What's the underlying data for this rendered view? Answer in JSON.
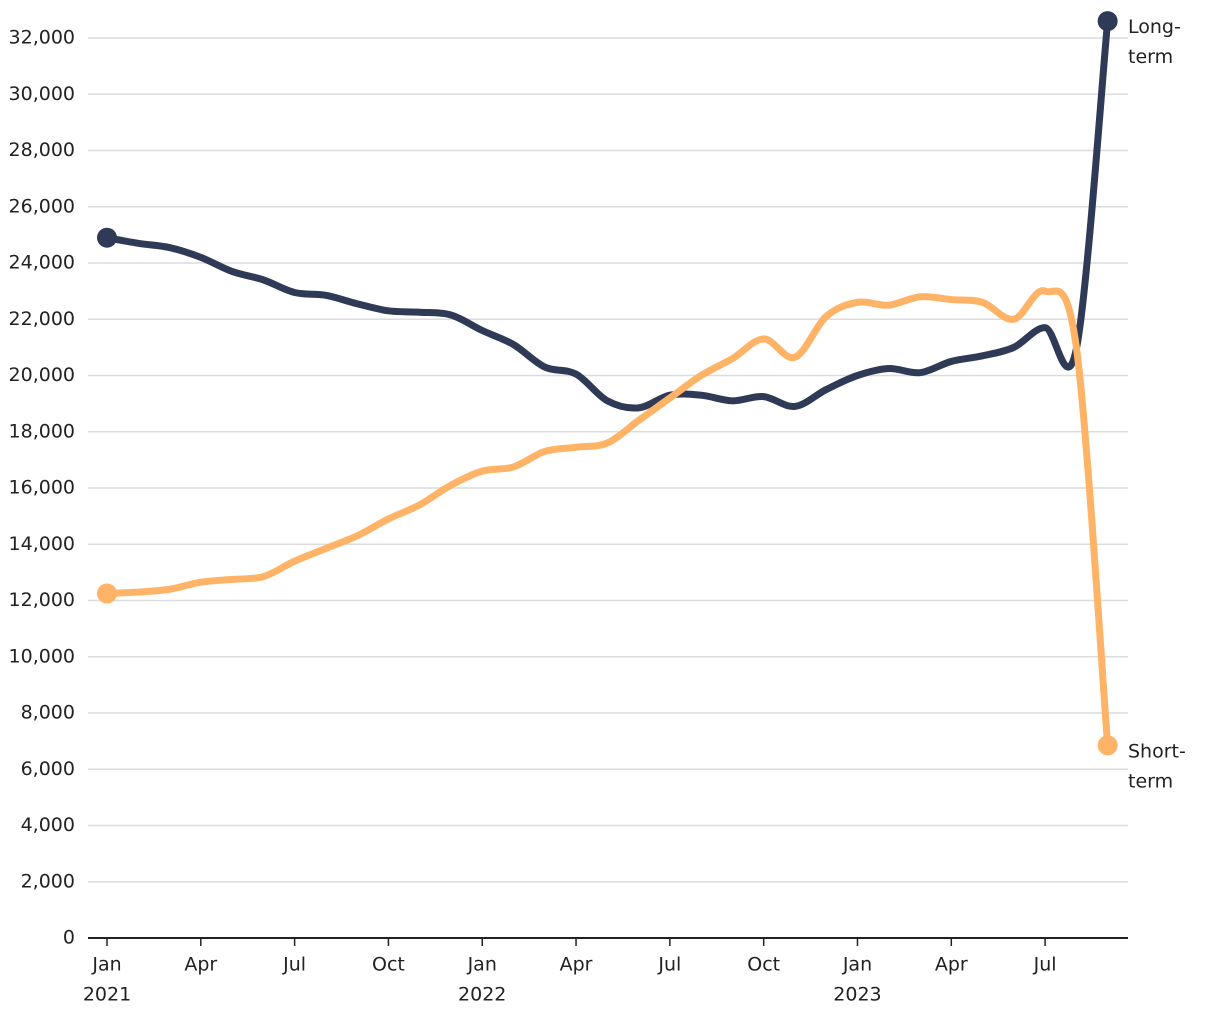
{
  "chart_data": {
    "type": "line",
    "x": [
      "2021-01",
      "2021-02",
      "2021-03",
      "2021-04",
      "2021-05",
      "2021-06",
      "2021-07",
      "2021-08",
      "2021-09",
      "2021-10",
      "2021-11",
      "2021-12",
      "2022-01",
      "2022-02",
      "2022-03",
      "2022-04",
      "2022-05",
      "2022-06",
      "2022-07",
      "2022-08",
      "2022-09",
      "2022-10",
      "2022-11",
      "2022-12",
      "2023-01",
      "2023-02",
      "2023-03",
      "2023-04",
      "2023-05",
      "2023-06",
      "2023-07",
      "2023-08",
      "2023-09"
    ],
    "series": [
      {
        "name": "Long-term",
        "color": "#2f3a56",
        "label_color": "#3a4466",
        "values": [
          24900,
          24700,
          24550,
          24200,
          23700,
          23400,
          22950,
          22850,
          22550,
          22300,
          22250,
          22150,
          21600,
          21100,
          20300,
          20050,
          19100,
          18850,
          19300,
          19300,
          19100,
          19250,
          18900,
          19500,
          20000,
          20250,
          20100,
          20500,
          20700,
          21000,
          21700,
          20950,
          32600
        ]
      },
      {
        "name": "Short-term",
        "color": "#ffb366",
        "label_color": "#b07a30",
        "values": [
          12250,
          12300,
          12400,
          12650,
          12750,
          12850,
          13400,
          13850,
          14300,
          14900,
          15400,
          16100,
          16600,
          16750,
          17300,
          17450,
          17600,
          18400,
          19200,
          20000,
          20600,
          21300,
          20650,
          22100,
          22600,
          22500,
          22800,
          22700,
          22600,
          22000,
          23000,
          21000,
          6850
        ]
      }
    ],
    "ylim": [
      0,
      32000
    ],
    "yticks": [
      {
        "value": 0,
        "label": "0"
      },
      {
        "value": 2000,
        "label": "2,000"
      },
      {
        "value": 4000,
        "label": "4,000"
      },
      {
        "value": 6000,
        "label": "6,000"
      },
      {
        "value": 8000,
        "label": "8,000"
      },
      {
        "value": 10000,
        "label": "10,000"
      },
      {
        "value": 12000,
        "label": "12,000"
      },
      {
        "value": 14000,
        "label": "14,000"
      },
      {
        "value": 16000,
        "label": "16,000"
      },
      {
        "value": 18000,
        "label": "18,000"
      },
      {
        "value": 20000,
        "label": "20,000"
      },
      {
        "value": 22000,
        "label": "22,000"
      },
      {
        "value": 24000,
        "label": "24,000"
      },
      {
        "value": 26000,
        "label": "26,000"
      },
      {
        "value": 28000,
        "label": "28,000"
      },
      {
        "value": 30000,
        "label": "30,000"
      },
      {
        "value": 32000,
        "label": "32,000"
      }
    ],
    "xticks": [
      {
        "value": "2021-01",
        "label": "Jan"
      },
      {
        "value": "2021-04",
        "label": "Apr"
      },
      {
        "value": "2021-07",
        "label": "Jul"
      },
      {
        "value": "2021-10",
        "label": "Oct"
      },
      {
        "value": "2022-01",
        "label": "Jan"
      },
      {
        "value": "2022-04",
        "label": "Apr"
      },
      {
        "value": "2022-07",
        "label": "Jul"
      },
      {
        "value": "2022-10",
        "label": "Oct"
      },
      {
        "value": "2023-01",
        "label": "Jan"
      },
      {
        "value": "2023-04",
        "label": "Apr"
      },
      {
        "value": "2023-07",
        "label": "Jul"
      }
    ],
    "xtick_years": [
      {
        "value": "2021-01",
        "label": "2021"
      },
      {
        "value": "2022-01",
        "label": "2022"
      },
      {
        "value": "2023-01",
        "label": "2023"
      }
    ],
    "grid": true
  }
}
